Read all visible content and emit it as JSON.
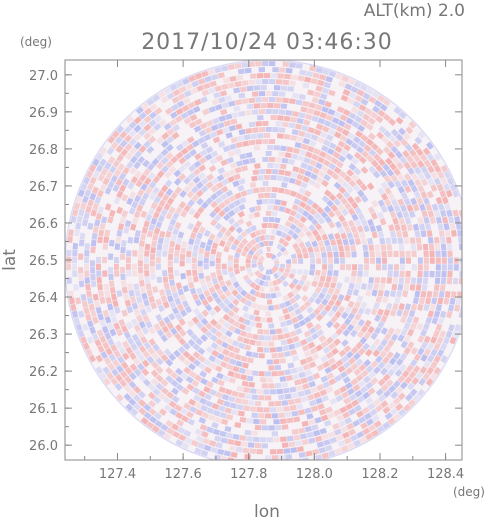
{
  "chart_data": {
    "type": "heatmap",
    "title": "2017/10/24 03:46:30",
    "altitude_label": "ALT(km) 2.0",
    "xlabel": "lon",
    "ylabel": "lat",
    "x_unit": "(deg)",
    "y_unit": "(deg)",
    "xlim": [
      127.24,
      128.45
    ],
    "ylim": [
      25.96,
      27.04
    ],
    "x_ticks": [
      "127.4",
      "127.6",
      "127.8",
      "128.0",
      "128.2",
      "128.4"
    ],
    "x_tick_values": [
      127.4,
      127.6,
      127.8,
      128.0,
      128.2,
      128.4
    ],
    "y_ticks": [
      "27.0",
      "26.9",
      "26.8",
      "26.7",
      "26.6",
      "26.5",
      "26.4",
      "26.3",
      "26.2",
      "26.1",
      "26.0"
    ],
    "y_tick_values": [
      27.0,
      26.9,
      26.8,
      26.7,
      26.6,
      26.5,
      26.4,
      26.3,
      26.2,
      26.1,
      26.0
    ],
    "radar_center": {
      "lon": 127.86,
      "lat": 26.49
    },
    "radar_radius_deg": {
      "lon": 0.62,
      "lat": 0.55
    },
    "grid": false,
    "colors": {
      "positive": "#f4b0b0",
      "negative": "#b8bcf0",
      "neutral": "#f6f2f6",
      "text": "#777777",
      "axis": "#888888"
    }
  }
}
